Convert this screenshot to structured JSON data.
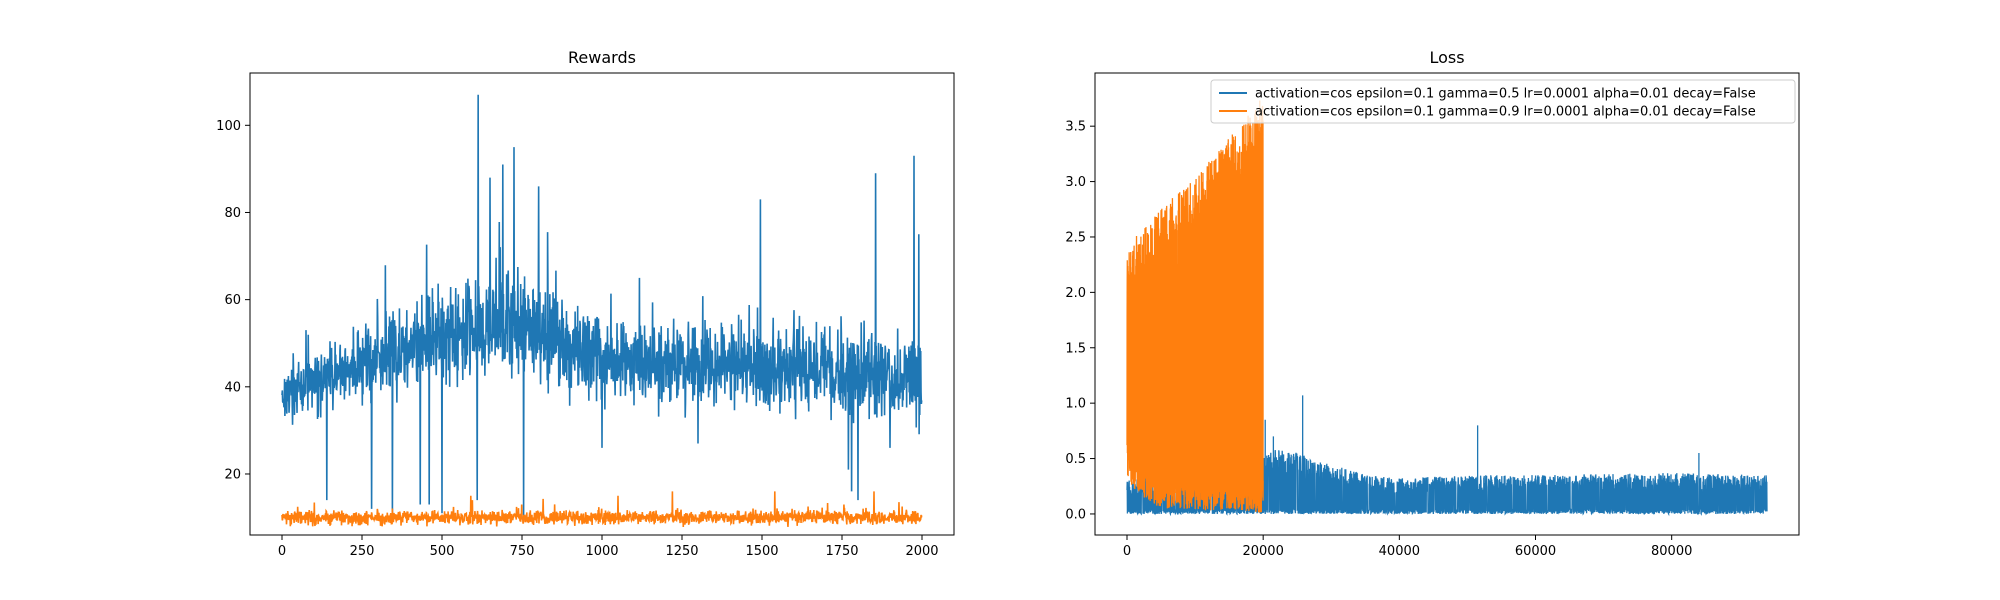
{
  "chart_data": [
    {
      "type": "line",
      "title": "Rewards",
      "xlabel": "",
      "ylabel": "",
      "xlim": [
        -100,
        2100
      ],
      "ylim": [
        6,
        112
      ],
      "xticks": [
        0,
        250,
        500,
        750,
        1000,
        1250,
        1500,
        1750,
        2000
      ],
      "yticks": [
        20,
        40,
        60,
        80,
        100
      ],
      "grid": false,
      "series": [
        {
          "color": "#1f77b4",
          "points": 2000,
          "baseline": [
            [
              0,
              38
            ],
            [
              250,
              45
            ],
            [
              500,
              52
            ],
            [
              700,
              55
            ],
            [
              1000,
              46
            ],
            [
              1500,
              44
            ],
            [
              2000,
              42
            ]
          ],
          "spread": [
            [
              0,
              6
            ],
            [
              300,
              10
            ],
            [
              700,
              14
            ],
            [
              1000,
              10
            ],
            [
              2000,
              11
            ]
          ],
          "peaks": [
            [
              613,
              107
            ],
            [
              650,
              88
            ],
            [
              690,
              91
            ],
            [
              725,
              95
            ],
            [
              802,
              86
            ],
            [
              1495,
              83
            ],
            [
              1855,
              89
            ],
            [
              1975,
              93
            ],
            [
              1990,
              75
            ]
          ],
          "dips": [
            [
              140,
              14
            ],
            [
              280,
              12
            ],
            [
              345,
              10
            ],
            [
              432,
              13
            ],
            [
              460,
              13
            ],
            [
              500,
              11
            ],
            [
              610,
              14
            ],
            [
              755,
              10
            ],
            [
              1000,
              26
            ],
            [
              1300,
              27
            ],
            [
              1780,
              16
            ],
            [
              1800,
              14
            ],
            [
              1770,
              21
            ],
            [
              1900,
              26
            ]
          ]
        },
        {
          "color": "#ff7f0e",
          "points": 2000,
          "baseline": [
            [
              0,
              10
            ],
            [
              2000,
              10
            ]
          ],
          "spread": [
            [
              0,
              1.8
            ],
            [
              2000,
              1.8
            ]
          ],
          "peaks": [
            [
              590,
              15
            ],
            [
              1050,
              15
            ],
            [
              1220,
              16
            ],
            [
              1540,
              16
            ],
            [
              1850,
              16
            ]
          ],
          "dips": []
        }
      ]
    },
    {
      "type": "line",
      "title": "Loss",
      "xlabel": "",
      "ylabel": "",
      "xlim": [
        -4700,
        98700
      ],
      "ylim": [
        -0.19,
        3.98
      ],
      "xticks": [
        0,
        20000,
        40000,
        60000,
        80000
      ],
      "yticks": [
        0.0,
        0.5,
        1.0,
        1.5,
        2.0,
        2.5,
        3.0,
        3.5
      ],
      "ytick_labels": [
        "0.0",
        "0.5",
        "1.0",
        "1.5",
        "2.0",
        "2.5",
        "3.0",
        "3.5"
      ],
      "grid": false,
      "legend_position": "top-right",
      "series": [
        {
          "name": "activation=cos epsilon=0.1 gamma=0.5 lr=0.0001 alpha=0.01 decay=False",
          "color": "#1f77b4",
          "x_end": 94000,
          "envelope": [
            [
              0,
              0.3
            ],
            [
              20000,
              0.5
            ],
            [
              22000,
              0.6
            ],
            [
              25000,
              0.55
            ],
            [
              30000,
              0.45
            ],
            [
              35000,
              0.35
            ],
            [
              40000,
              0.32
            ],
            [
              50000,
              0.35
            ],
            [
              60000,
              0.35
            ],
            [
              80000,
              0.37
            ],
            [
              94000,
              0.35
            ]
          ],
          "peaks": [
            [
              20300,
              0.85
            ],
            [
              21500,
              0.7
            ],
            [
              25800,
              1.07
            ],
            [
              51500,
              0.8
            ],
            [
              84000,
              0.55
            ]
          ]
        },
        {
          "name": "activation=cos epsilon=0.1 gamma=0.9 lr=0.0001 alpha=0.01 decay=False",
          "color": "#ff7f0e",
          "x_end": 20000,
          "envelope": [
            [
              0,
              2.3
            ],
            [
              1000,
              2.5
            ],
            [
              5000,
              2.75
            ],
            [
              10000,
              3.05
            ],
            [
              15000,
              3.4
            ],
            [
              20000,
              3.8
            ]
          ],
          "floor": [
            [
              0,
              0.3
            ],
            [
              2000,
              0.15
            ],
            [
              5000,
              0.05
            ],
            [
              20000,
              0.01
            ]
          ]
        }
      ]
    }
  ]
}
